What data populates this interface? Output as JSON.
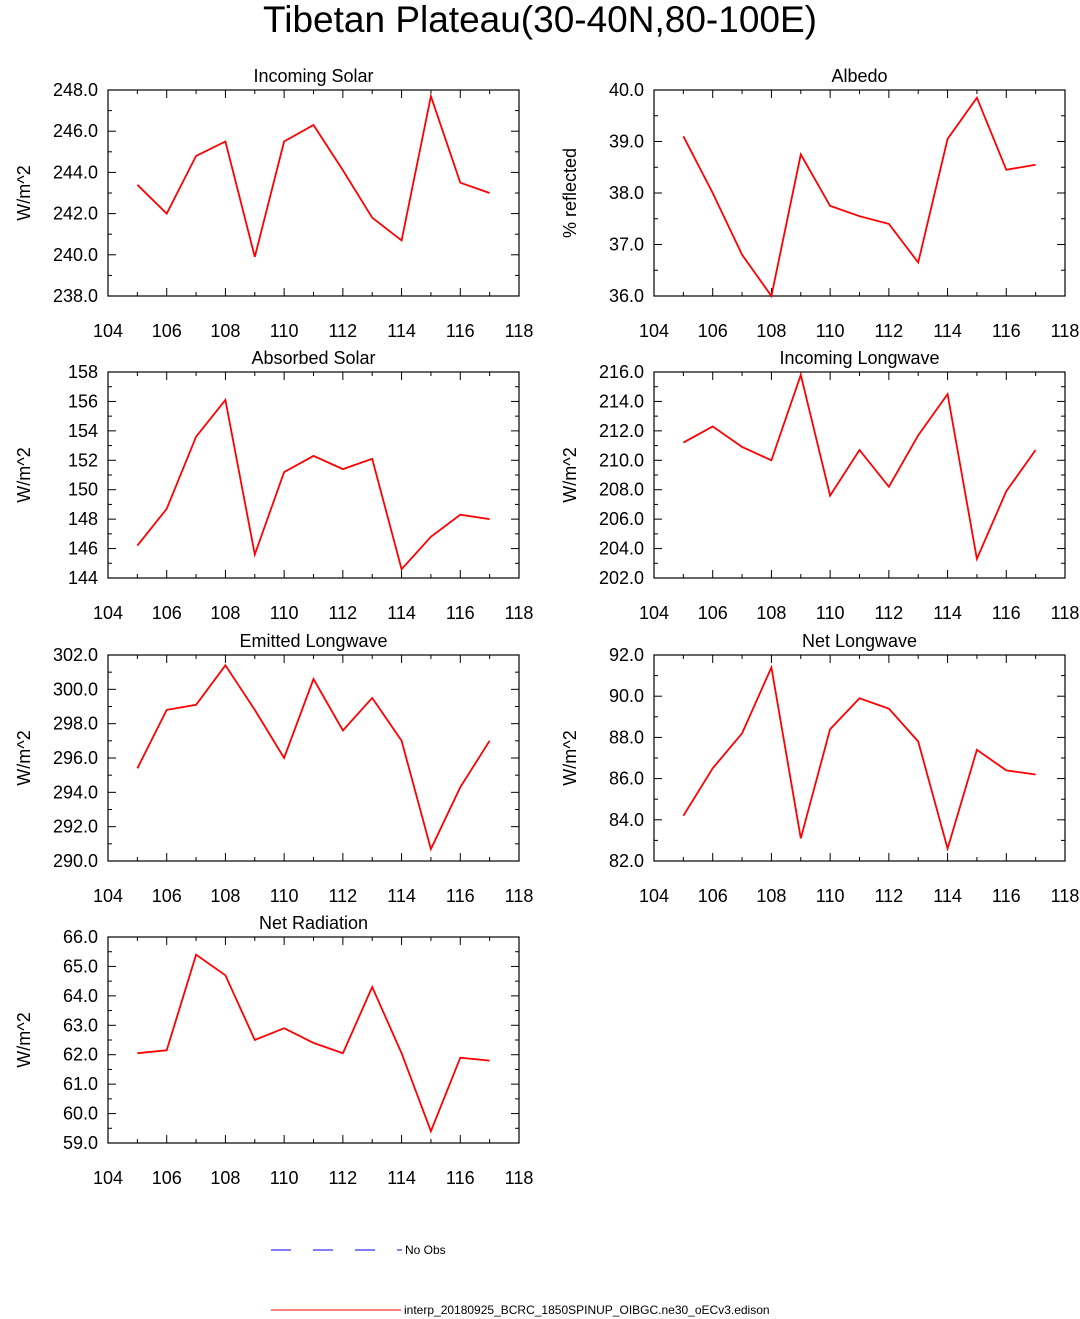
{
  "title": "Tibetan Plateau(30-40N,80-100E)",
  "colors": {
    "model": "#ff0000",
    "obs": "#0000ff",
    "axis": "#000000"
  },
  "legend": [
    {
      "label": "No Obs",
      "color": "#0000ff",
      "style": "dashed"
    },
    {
      "label": "interp_20180925_BCRC_1850SPINUP_OIBGC.ne30_oECv3.edison",
      "color": "#ff0000",
      "style": "solid"
    }
  ],
  "chart_data": [
    {
      "type": "line",
      "title": "Incoming Solar",
      "ylabel": "W/m^2",
      "xlim": [
        104,
        118
      ],
      "xticks": [
        104,
        106,
        108,
        110,
        112,
        114,
        116,
        118
      ],
      "ylim": [
        238,
        248
      ],
      "yticks": [
        "238.0",
        "240.0",
        "242.0",
        "244.0",
        "246.0",
        "248.0"
      ],
      "x": [
        105,
        106,
        107,
        108,
        109,
        110,
        111,
        112,
        113,
        114,
        115,
        116,
        117
      ],
      "series": [
        {
          "values": [
            243.4,
            242.0,
            244.8,
            245.5,
            239.9,
            245.5,
            246.3,
            244.1,
            241.8,
            240.7,
            247.7,
            243.5,
            243.0
          ]
        }
      ]
    },
    {
      "type": "line",
      "title": "Albedo",
      "ylabel": "% reflected",
      "xlim": [
        104,
        118
      ],
      "xticks": [
        104,
        106,
        108,
        110,
        112,
        114,
        116,
        118
      ],
      "ylim": [
        36,
        40
      ],
      "yticks": [
        "36.0",
        "37.0",
        "38.0",
        "39.0",
        "40.0"
      ],
      "x": [
        105,
        106,
        107,
        108,
        109,
        110,
        111,
        112,
        113,
        114,
        115,
        116,
        117
      ],
      "series": [
        {
          "values": [
            39.1,
            38.0,
            36.8,
            36.0,
            38.75,
            37.75,
            37.55,
            37.4,
            36.65,
            39.05,
            39.85,
            38.45,
            38.55
          ]
        }
      ]
    },
    {
      "type": "line",
      "title": "Absorbed Solar",
      "ylabel": "W/m^2",
      "xlim": [
        104,
        118
      ],
      "xticks": [
        104,
        106,
        108,
        110,
        112,
        114,
        116,
        118
      ],
      "ylim": [
        144,
        158
      ],
      "yticks": [
        "144",
        "146",
        "148",
        "150",
        "152",
        "154",
        "156",
        "158"
      ],
      "x": [
        105,
        106,
        107,
        108,
        109,
        110,
        111,
        112,
        113,
        114,
        115,
        116,
        117
      ],
      "series": [
        {
          "values": [
            146.2,
            148.7,
            153.6,
            156.1,
            145.6,
            151.2,
            152.3,
            151.4,
            152.1,
            144.6,
            146.8,
            148.3,
            148.0
          ]
        }
      ]
    },
    {
      "type": "line",
      "title": "Incoming Longwave",
      "ylabel": "W/m^2",
      "xlim": [
        104,
        118
      ],
      "xticks": [
        104,
        106,
        108,
        110,
        112,
        114,
        116,
        118
      ],
      "ylim": [
        202,
        216
      ],
      "yticks": [
        "202.0",
        "204.0",
        "206.0",
        "208.0",
        "210.0",
        "212.0",
        "214.0",
        "216.0"
      ],
      "x": [
        105,
        106,
        107,
        108,
        109,
        110,
        111,
        112,
        113,
        114,
        115,
        116,
        117
      ],
      "series": [
        {
          "values": [
            211.2,
            212.3,
            210.9,
            210.0,
            215.8,
            207.6,
            210.7,
            208.2,
            211.7,
            214.5,
            203.3,
            207.9,
            210.7
          ]
        }
      ]
    },
    {
      "type": "line",
      "title": "Emitted Longwave",
      "ylabel": "W/m^2",
      "xlim": [
        104,
        118
      ],
      "xticks": [
        104,
        106,
        108,
        110,
        112,
        114,
        116,
        118
      ],
      "ylim": [
        290,
        302
      ],
      "yticks": [
        "290.0",
        "292.0",
        "294.0",
        "296.0",
        "298.0",
        "300.0",
        "302.0"
      ],
      "x": [
        105,
        106,
        107,
        108,
        109,
        110,
        111,
        112,
        113,
        114,
        115,
        116,
        117
      ],
      "series": [
        {
          "values": [
            295.4,
            298.8,
            299.1,
            301.4,
            298.8,
            296.0,
            300.6,
            297.6,
            299.5,
            297.0,
            290.7,
            294.3,
            297.0
          ]
        }
      ]
    },
    {
      "type": "line",
      "title": "Net Longwave",
      "ylabel": "W/m^2",
      "xlim": [
        104,
        118
      ],
      "xticks": [
        104,
        106,
        108,
        110,
        112,
        114,
        116,
        118
      ],
      "ylim": [
        82,
        92
      ],
      "yticks": [
        "82.0",
        "84.0",
        "86.0",
        "88.0",
        "90.0",
        "92.0"
      ],
      "x": [
        105,
        106,
        107,
        108,
        109,
        110,
        111,
        112,
        113,
        114,
        115,
        116,
        117
      ],
      "series": [
        {
          "values": [
            84.2,
            86.5,
            88.2,
            91.4,
            83.1,
            88.4,
            89.9,
            89.4,
            87.8,
            82.6,
            87.4,
            86.4,
            86.2
          ]
        }
      ]
    },
    {
      "type": "line",
      "title": "Net Radiation",
      "ylabel": "W/m^2",
      "xlim": [
        104,
        118
      ],
      "xticks": [
        104,
        106,
        108,
        110,
        112,
        114,
        116,
        118
      ],
      "ylim": [
        59,
        66
      ],
      "yticks": [
        "59.0",
        "60.0",
        "61.0",
        "62.0",
        "63.0",
        "64.0",
        "65.0",
        "66.0"
      ],
      "x": [
        105,
        106,
        107,
        108,
        109,
        110,
        111,
        112,
        113,
        114,
        115,
        116,
        117
      ],
      "series": [
        {
          "values": [
            62.05,
            62.15,
            65.4,
            64.7,
            62.5,
            62.9,
            62.4,
            62.05,
            64.3,
            62.05,
            59.4,
            61.9,
            61.8
          ]
        }
      ]
    }
  ]
}
